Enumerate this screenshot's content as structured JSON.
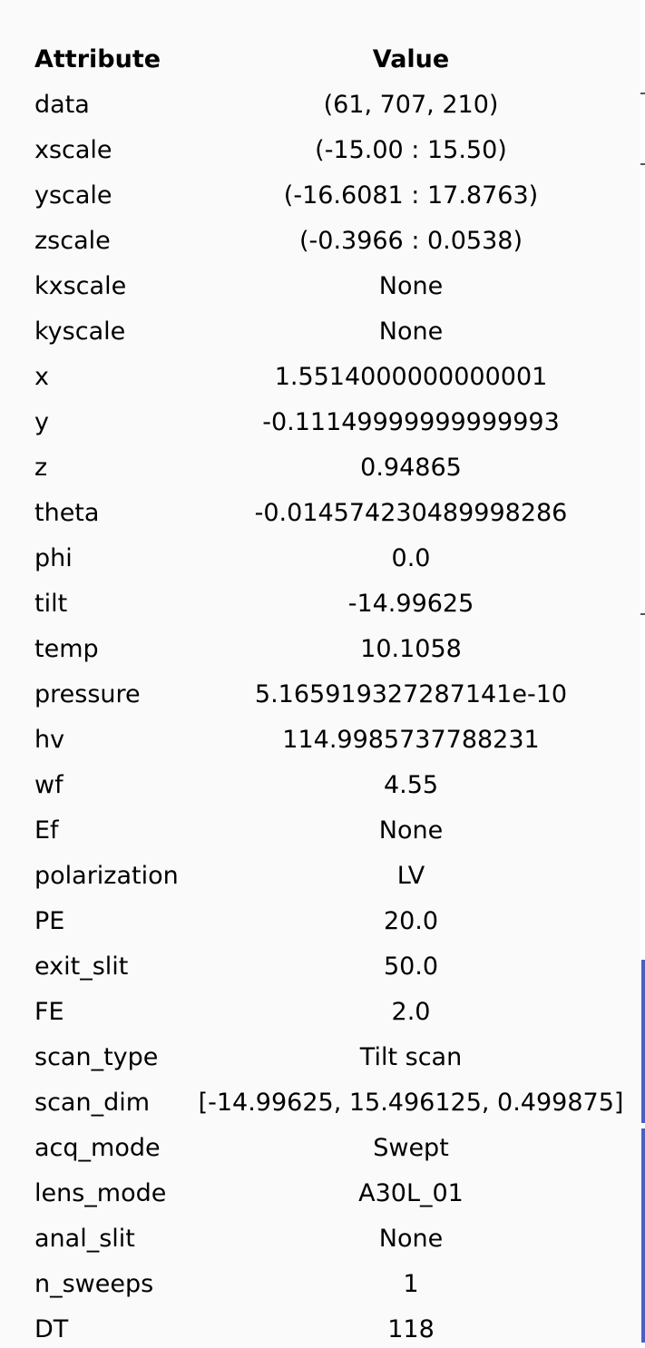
{
  "table": {
    "headers": {
      "attribute": "Attribute",
      "value": "Value"
    },
    "rows": [
      {
        "name": "data",
        "value": "(61,  707,  210)"
      },
      {
        "name": "xscale",
        "value": "(-15.00  :  15.50)"
      },
      {
        "name": "yscale",
        "value": "(-16.6081  :  17.8763)"
      },
      {
        "name": "zscale",
        "value": "(-0.3966  :  0.0538)"
      },
      {
        "name": "kxscale",
        "value": "None"
      },
      {
        "name": "kyscale",
        "value": "None"
      },
      {
        "name": "x",
        "value": "1.5514000000000001"
      },
      {
        "name": "y",
        "value": "-0.11149999999999993"
      },
      {
        "name": "z",
        "value": "0.94865"
      },
      {
        "name": "theta",
        "value": "-0.014574230489998286"
      },
      {
        "name": "phi",
        "value": "0.0"
      },
      {
        "name": "tilt",
        "value": "-14.99625"
      },
      {
        "name": "temp",
        "value": "10.1058"
      },
      {
        "name": "pressure",
        "value": "5.165919327287141e-10"
      },
      {
        "name": "hv",
        "value": "114.9985737788231"
      },
      {
        "name": "wf",
        "value": "4.55"
      },
      {
        "name": "Ef",
        "value": "None"
      },
      {
        "name": "polarization",
        "value": "LV"
      },
      {
        "name": "PE",
        "value": "20.0"
      },
      {
        "name": "exit_slit",
        "value": "50.0"
      },
      {
        "name": "FE",
        "value": "2.0"
      },
      {
        "name": "scan_type",
        "value": "Tilt scan"
      },
      {
        "name": "scan_dim",
        "value": "[-14.99625, 15.496125, 0.499875]"
      },
      {
        "name": "acq_mode",
        "value": "Swept"
      },
      {
        "name": "lens_mode",
        "value": "A30L_01"
      },
      {
        "name": "anal_slit",
        "value": "None"
      },
      {
        "name": "n_sweeps",
        "value": "1"
      },
      {
        "name": "DT",
        "value": "118"
      }
    ]
  },
  "colors": {
    "panel_background": "#fafafa",
    "text": "#000000",
    "edge_accent": "#4a5fc1"
  }
}
